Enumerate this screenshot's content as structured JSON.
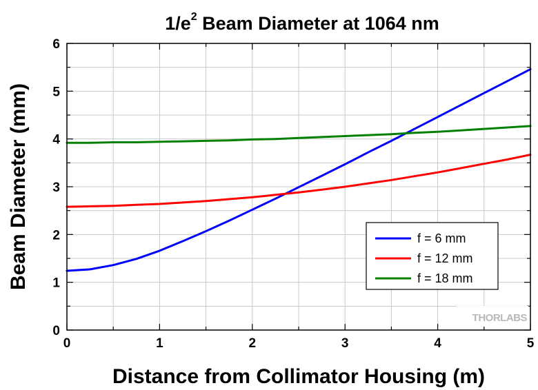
{
  "chart_data": {
    "type": "line",
    "title_main": "1/e",
    "title_sup": "2",
    "title_rest": " Beam Diameter at 1064 nm",
    "xlabel": "Distance from Collimator Housing (m)",
    "ylabel": "Beam Diameter (mm)",
    "xlim": [
      0,
      5
    ],
    "ylim": [
      0,
      6
    ],
    "x_ticks": [
      "0",
      "1",
      "2",
      "3",
      "4",
      "5"
    ],
    "y_ticks": [
      "0",
      "1",
      "2",
      "3",
      "4",
      "5",
      "6"
    ],
    "grid": true,
    "legend_position": "bottom-right",
    "watermark": "THORLABS",
    "series": [
      {
        "name": "f = 6 mm",
        "color": "#0000ff",
        "x": [
          0,
          0.25,
          0.5,
          0.75,
          1.0,
          1.25,
          1.5,
          1.75,
          2.0,
          2.25,
          2.5,
          2.75,
          3.0,
          3.25,
          3.5,
          3.75,
          4.0,
          4.25,
          4.5,
          4.75,
          5.0
        ],
        "y": [
          1.24,
          1.27,
          1.36,
          1.49,
          1.66,
          1.86,
          2.07,
          2.29,
          2.52,
          2.75,
          2.99,
          3.23,
          3.47,
          3.72,
          3.96,
          4.21,
          4.46,
          4.71,
          4.96,
          5.21,
          5.46
        ]
      },
      {
        "name": "f = 12 mm",
        "color": "#ff0000",
        "x": [
          0,
          0.25,
          0.5,
          0.75,
          1.0,
          1.25,
          1.5,
          1.75,
          2.0,
          2.25,
          2.5,
          2.75,
          3.0,
          3.25,
          3.5,
          3.75,
          4.0,
          4.25,
          4.5,
          4.75,
          5.0
        ],
        "y": [
          2.58,
          2.59,
          2.6,
          2.62,
          2.64,
          2.67,
          2.7,
          2.74,
          2.78,
          2.83,
          2.88,
          2.94,
          3.0,
          3.07,
          3.14,
          3.22,
          3.3,
          3.39,
          3.48,
          3.57,
          3.67
        ]
      },
      {
        "name": "f = 18 mm",
        "color": "#008000",
        "x": [
          0,
          0.25,
          0.5,
          0.75,
          1.0,
          1.25,
          1.5,
          1.75,
          2.0,
          2.25,
          2.5,
          2.75,
          3.0,
          3.25,
          3.5,
          3.75,
          4.0,
          4.25,
          4.5,
          4.75,
          5.0
        ],
        "y": [
          3.92,
          3.92,
          3.93,
          3.93,
          3.94,
          3.95,
          3.96,
          3.97,
          3.99,
          4.0,
          4.02,
          4.04,
          4.06,
          4.08,
          4.1,
          4.13,
          4.15,
          4.18,
          4.21,
          4.24,
          4.27
        ]
      }
    ]
  }
}
